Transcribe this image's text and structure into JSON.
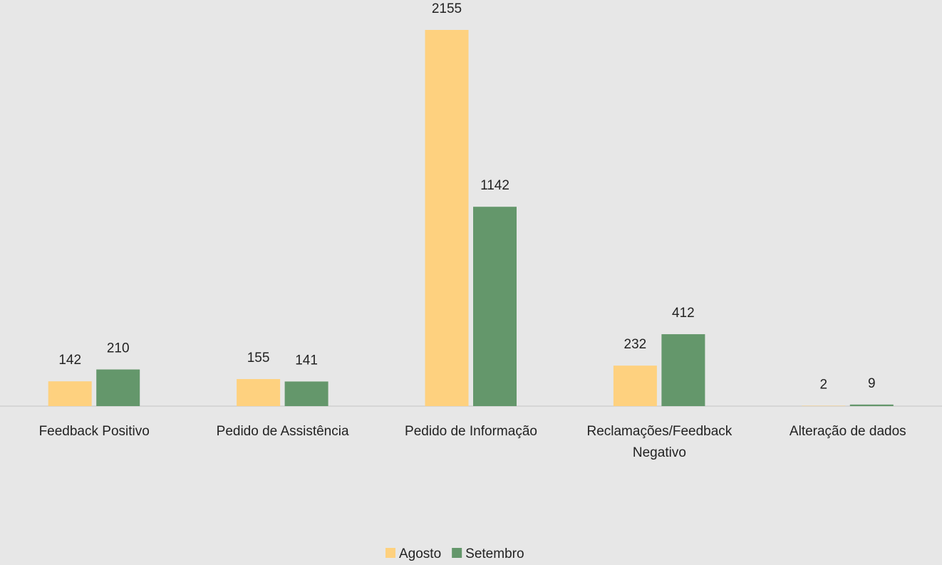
{
  "chart_data": {
    "type": "bar",
    "categories": [
      "Feedback Positivo",
      "Pedido de Assistência",
      "Pedido de Informação",
      "Reclamações/Feedback Negativo",
      "Alteração de dados"
    ],
    "series": [
      {
        "name": "Agosto",
        "color": "#fed17f",
        "values": [
          142,
          155,
          2155,
          232,
          2
        ]
      },
      {
        "name": "Setembro",
        "color": "#64976b",
        "values": [
          210,
          141,
          1142,
          412,
          9
        ]
      }
    ],
    "legend": "bottom"
  }
}
